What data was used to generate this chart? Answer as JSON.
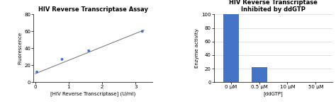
{
  "chart1": {
    "title": "HIV Reverse Transcriptase Assay",
    "xlabel": "[HIV Reverse Transcriptase] (U/ml)",
    "ylabel": "Fluorescence",
    "scatter_x": [
      0.05,
      0.8,
      1.6,
      3.2
    ],
    "scatter_y": [
      12,
      27,
      37,
      60
    ],
    "line_x": [
      0.0,
      3.25
    ],
    "line_y": [
      10,
      61.5
    ],
    "ylim": [
      0,
      80
    ],
    "xlim": [
      -0.05,
      3.5
    ],
    "yticks": [
      0,
      20,
      40,
      60,
      80
    ],
    "xticks": [
      0,
      1,
      2,
      3
    ],
    "scatter_color": "#4472C4",
    "line_color": "#808080"
  },
  "chart2": {
    "title": "HIV Reverse Transcriptase\nInhibited by ddGTP",
    "xlabel": "[ddGTP]",
    "ylabel": "Enzyme activity",
    "categories": [
      "0 μM",
      "0.5 μM",
      "10 μM",
      "50 μM"
    ],
    "values": [
      100,
      22,
      0,
      0
    ],
    "ylim": [
      0,
      100
    ],
    "yticks": [
      0,
      20,
      40,
      60,
      80,
      100
    ],
    "bar_color": "#4472C4"
  },
  "background_color": "#ffffff"
}
